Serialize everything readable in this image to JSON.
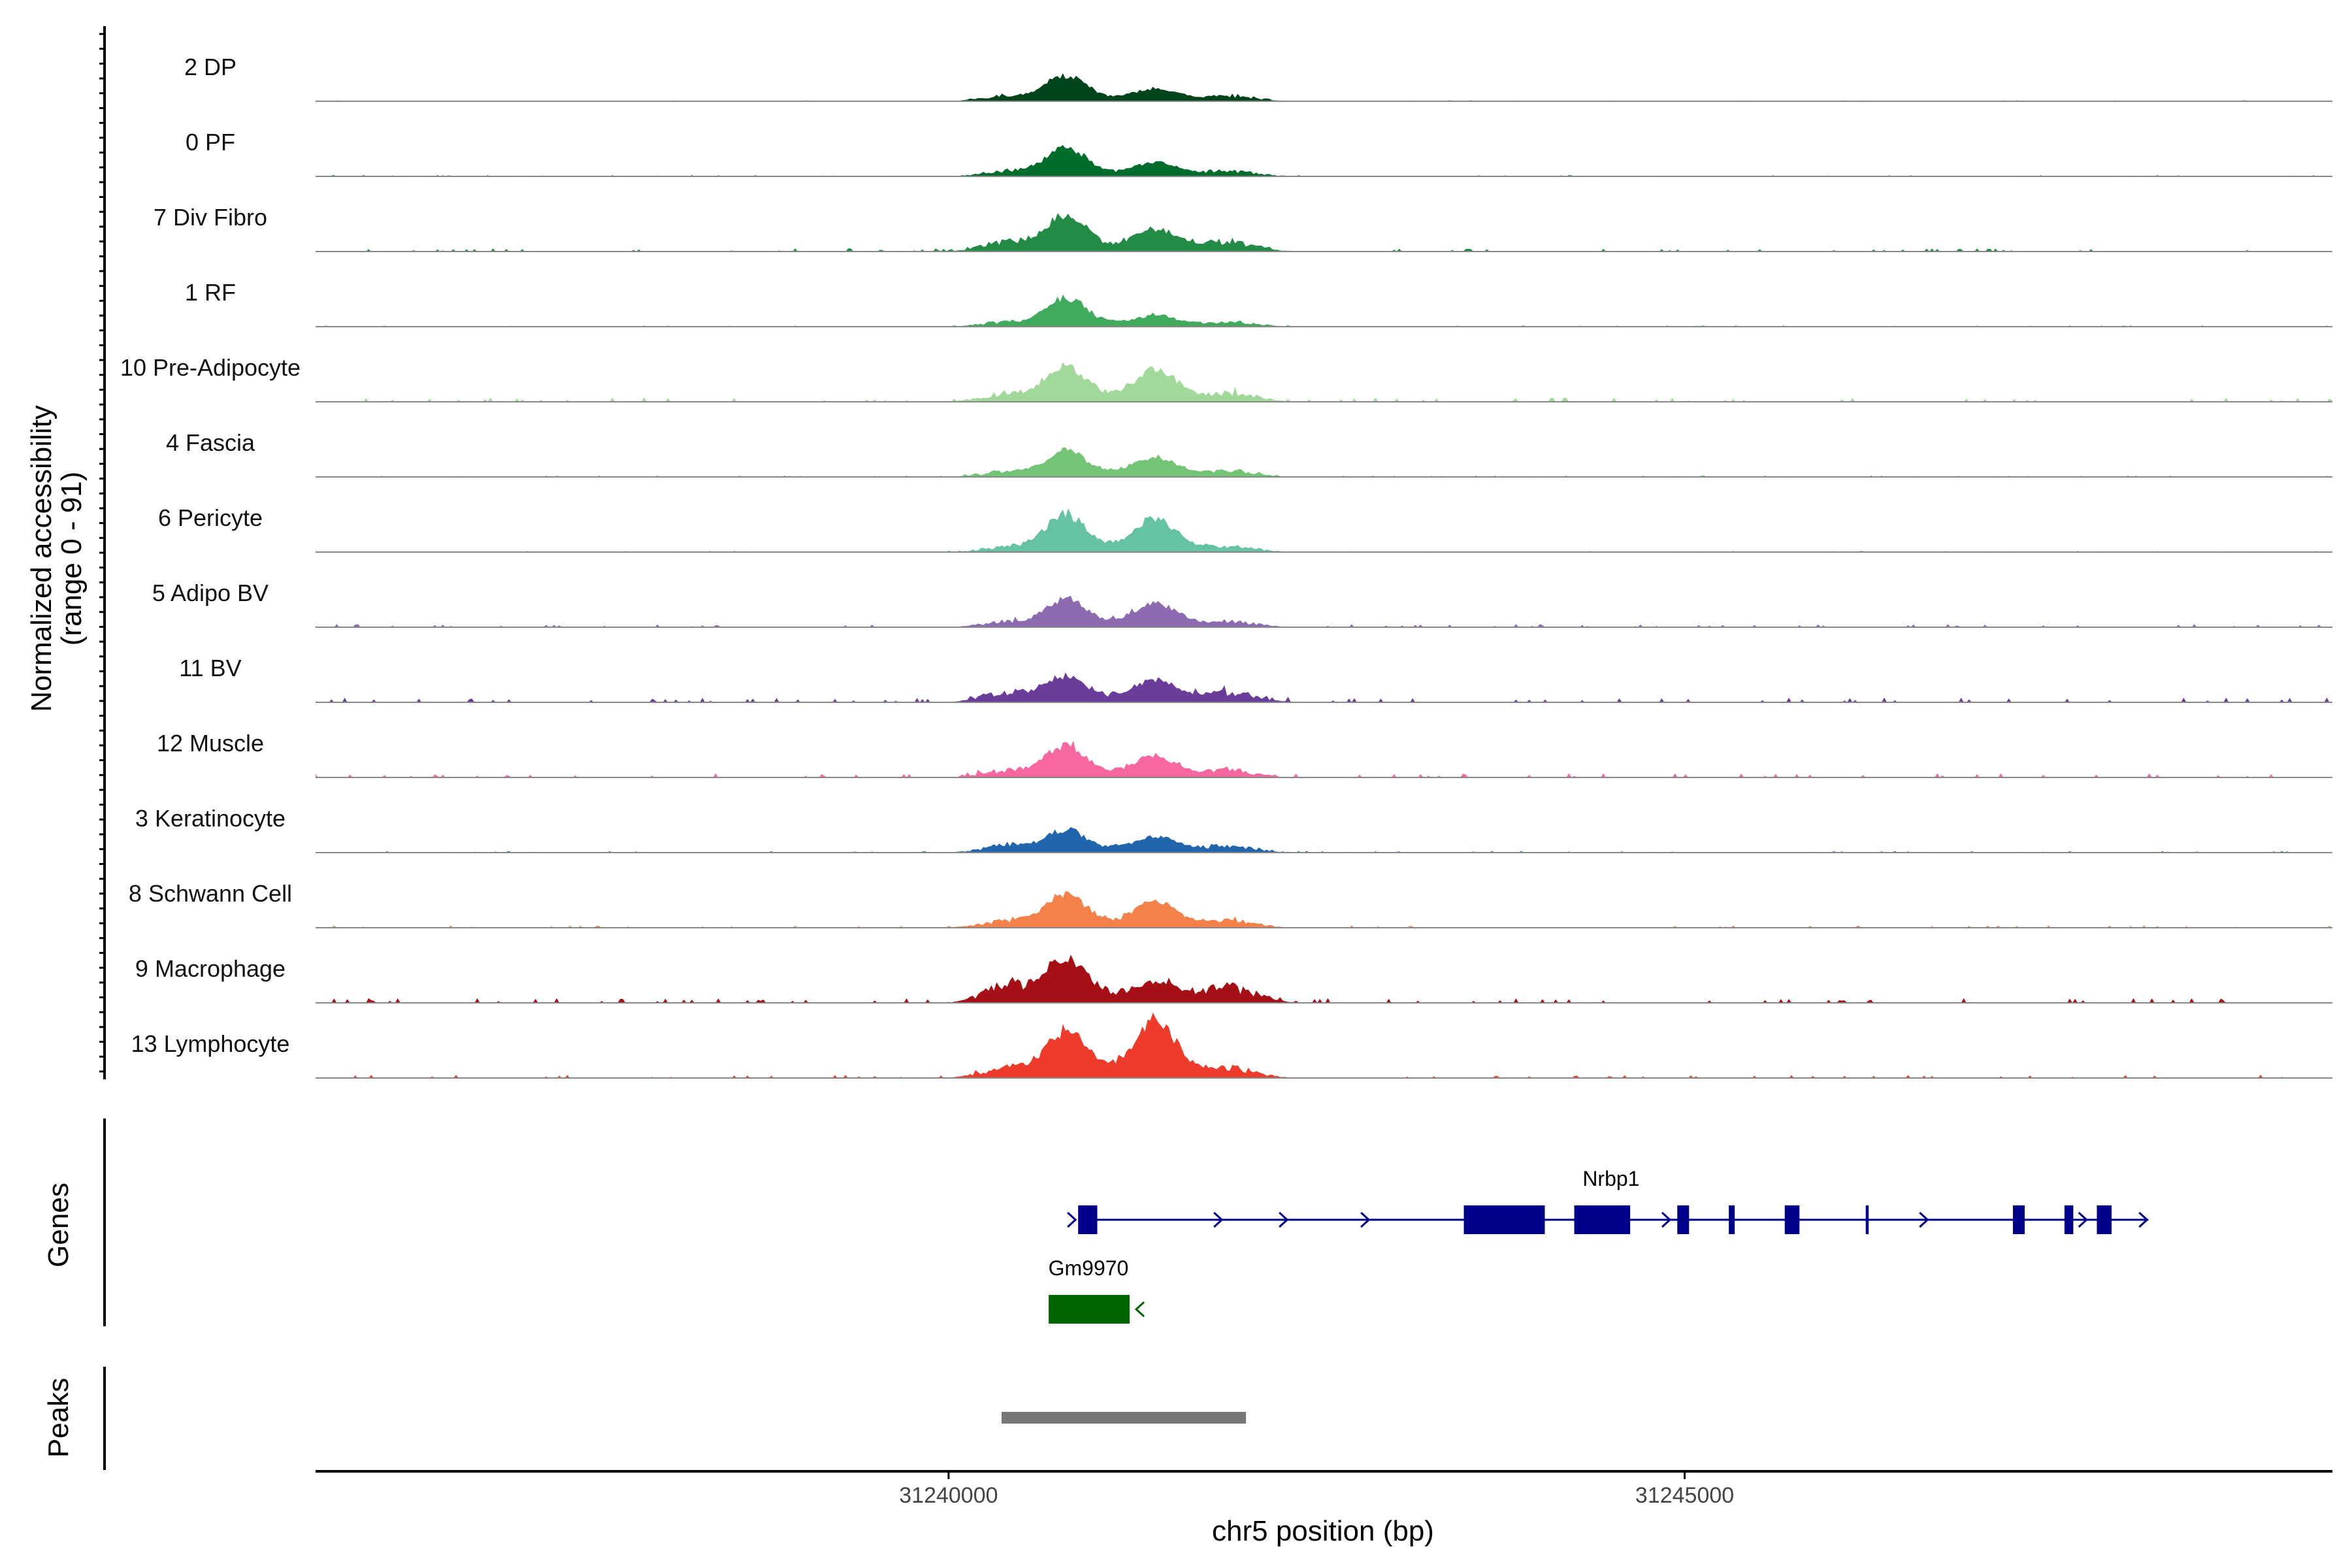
{
  "chart_data": {
    "type": "area",
    "chromosome": "chr5",
    "xlim": [
      31235700,
      31249400
    ],
    "xlabel": "chr5 position (bp)",
    "ylabel": "Normalized accessibility",
    "ylabel_range": "(range 0 - 91)",
    "ylim": [
      0,
      91
    ],
    "x_ticks": [
      {
        "value": 31240000,
        "label": "31240000"
      },
      {
        "value": 31245000,
        "label": "31245000"
      }
    ],
    "peak_bumps": [
      {
        "name": "main",
        "center": 31240800,
        "width": 140
      },
      {
        "name": "second",
        "center": 31241400,
        "width": 150
      }
    ],
    "series": [
      {
        "name": "2 DP",
        "color": "#00441b",
        "main": 0.36,
        "second": 0.18,
        "shoulder": 0.08,
        "noise": 0.01
      },
      {
        "name": "0 PF",
        "color": "#006d2c",
        "main": 0.4,
        "second": 0.2,
        "shoulder": 0.08,
        "noise": 0.012
      },
      {
        "name": "7 Div Fibro",
        "color": "#238b45",
        "main": 0.5,
        "second": 0.32,
        "shoulder": 0.14,
        "noise": 0.03
      },
      {
        "name": "1 RF",
        "color": "#41ab5d",
        "main": 0.4,
        "second": 0.16,
        "shoulder": 0.07,
        "noise": 0.012
      },
      {
        "name": "10 Pre-Adipocyte",
        "color": "#a1d99b",
        "main": 0.5,
        "second": 0.44,
        "shoulder": 0.12,
        "noise": 0.04
      },
      {
        "name": "4 Fascia",
        "color": "#74c476",
        "main": 0.36,
        "second": 0.28,
        "shoulder": 0.08,
        "noise": 0.015
      },
      {
        "name": "6 Pericyte",
        "color": "#66c2a4",
        "main": 0.52,
        "second": 0.46,
        "shoulder": 0.08,
        "noise": 0.012
      },
      {
        "name": "5 Adipo BV",
        "color": "#8c6bb1",
        "main": 0.4,
        "second": 0.34,
        "shoulder": 0.08,
        "noise": 0.03
      },
      {
        "name": "11 BV",
        "color": "#6a3d9a",
        "main": 0.36,
        "second": 0.32,
        "shoulder": 0.14,
        "noise": 0.045
      },
      {
        "name": "12 Muscle",
        "color": "#f768a1",
        "main": 0.44,
        "second": 0.3,
        "shoulder": 0.1,
        "noise": 0.04
      },
      {
        "name": "3 Keratinocyte",
        "color": "#2166ac",
        "main": 0.32,
        "second": 0.22,
        "shoulder": 0.1,
        "noise": 0.015
      },
      {
        "name": "8 Schwann Cell",
        "color": "#f4814a",
        "main": 0.46,
        "second": 0.36,
        "shoulder": 0.1,
        "noise": 0.02
      },
      {
        "name": "9 Macrophage",
        "color": "#a50f15",
        "main": 0.64,
        "second": 0.3,
        "shoulder": 0.22,
        "noise": 0.045
      },
      {
        "name": "13 Lymphocyte",
        "color": "#ef3b2c",
        "main": 0.66,
        "second": 0.8,
        "shoulder": 0.14,
        "noise": 0.03
      }
    ],
    "genes_track": {
      "label": "Genes",
      "genes": [
        {
          "name": "Nrbp1",
          "strand": "+",
          "color": "#00008b",
          "start": 31240880,
          "end": 31248150,
          "exons": [
            [
              31240880,
              31241010
            ],
            [
              31243500,
              31244050
            ],
            [
              31244250,
              31244630
            ],
            [
              31244950,
              31245030
            ],
            [
              31245300,
              31245340
            ],
            [
              31245680,
              31245780
            ],
            [
              31246230,
              31246250
            ],
            [
              31247230,
              31247310
            ],
            [
              31247580,
              31247640
            ],
            [
              31247800,
              31247900
            ]
          ]
        },
        {
          "name": "Gm9970",
          "strand": "-",
          "color": "#006400",
          "start": 31240680,
          "end": 31241230,
          "exons": [
            [
              31240680,
              31241230
            ]
          ]
        }
      ]
    },
    "peaks_track": {
      "label": "Peaks",
      "color": "#777777",
      "peaks": [
        [
          31240360,
          31242020
        ]
      ]
    }
  }
}
